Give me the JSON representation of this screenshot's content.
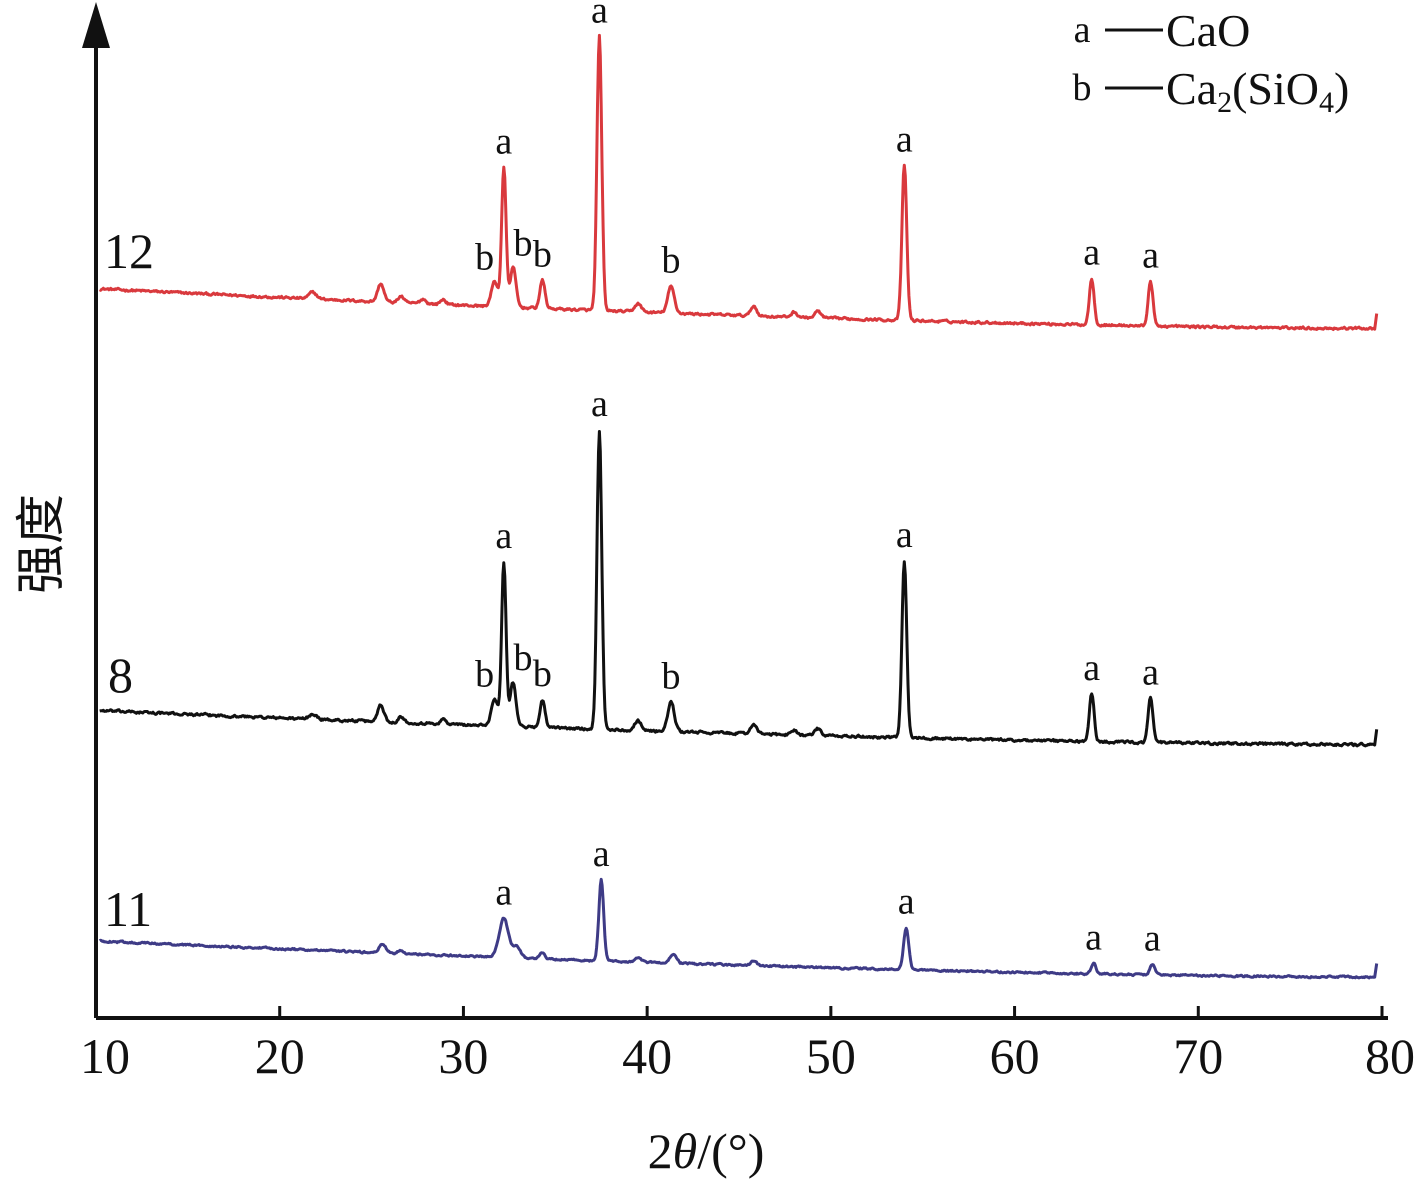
{
  "chart_data": {
    "type": "line",
    "title": "",
    "xlabel": "2θ/(°)",
    "ylabel": "强度",
    "xlim": [
      10,
      80
    ],
    "xticks": [
      10,
      20,
      30,
      40,
      50,
      60,
      70,
      80
    ],
    "grid": false,
    "y_scale": "offset-stacked, arbitrary intensity",
    "legend": {
      "placement": "top-right",
      "entries": [
        {
          "key": "a",
          "dash": "—",
          "label": "CaO",
          "label_main": "CaO",
          "label_sub": "",
          "label_close": ""
        },
        {
          "key": "b",
          "dash": "—",
          "label": "Ca2(SiO4)",
          "label_main": "Ca",
          "label_sub": "2",
          "label_mid": "(SiO",
          "label_sub2": "4",
          "label_close": ")"
        }
      ]
    },
    "series": [
      {
        "label": "12",
        "color": "#d9393d",
        "baseline_start": 0.14,
        "baseline_end": 0.02,
        "noise": 0.006,
        "peaks": [
          {
            "x": 21.8,
            "h": 0.02,
            "w": 0.2
          },
          {
            "x": 25.5,
            "h": 0.055,
            "w": 0.17
          },
          {
            "x": 26.6,
            "h": 0.02,
            "w": 0.15
          },
          {
            "x": 27.8,
            "h": 0.014,
            "w": 0.15
          },
          {
            "x": 28.9,
            "h": 0.015,
            "w": 0.15
          },
          {
            "x": 31.7,
            "h": 0.075,
            "w": 0.18,
            "label": "b"
          },
          {
            "x": 32.2,
            "h": 0.42,
            "w": 0.12,
            "label": "a"
          },
          {
            "x": 32.7,
            "h": 0.12,
            "w": 0.16,
            "label": "b"
          },
          {
            "x": 34.3,
            "h": 0.085,
            "w": 0.14,
            "label": "b"
          },
          {
            "x": 37.4,
            "h": 0.83,
            "w": 0.13,
            "label": "a"
          },
          {
            "x": 39.5,
            "h": 0.025,
            "w": 0.18
          },
          {
            "x": 41.3,
            "h": 0.08,
            "w": 0.18,
            "label": "b"
          },
          {
            "x": 45.8,
            "h": 0.03,
            "w": 0.16
          },
          {
            "x": 48.0,
            "h": 0.015,
            "w": 0.16
          },
          {
            "x": 49.3,
            "h": 0.02,
            "w": 0.16
          },
          {
            "x": 54.0,
            "h": 0.47,
            "w": 0.13,
            "label": "a"
          },
          {
            "x": 64.2,
            "h": 0.14,
            "w": 0.13,
            "label": "a"
          },
          {
            "x": 67.4,
            "h": 0.135,
            "w": 0.13,
            "label": "a"
          }
        ]
      },
      {
        "label": "8",
        "color": "#111111",
        "baseline_start": 0.11,
        "baseline_end": 0.01,
        "noise": 0.006,
        "peaks": [
          {
            "x": 21.8,
            "h": 0.015,
            "w": 0.2
          },
          {
            "x": 25.5,
            "h": 0.05,
            "w": 0.17
          },
          {
            "x": 26.6,
            "h": 0.018,
            "w": 0.15
          },
          {
            "x": 28.9,
            "h": 0.014,
            "w": 0.15
          },
          {
            "x": 31.7,
            "h": 0.08,
            "w": 0.18,
            "label": "b"
          },
          {
            "x": 32.2,
            "h": 0.48,
            "w": 0.12,
            "label": "a"
          },
          {
            "x": 32.7,
            "h": 0.13,
            "w": 0.16,
            "label": "b"
          },
          {
            "x": 34.3,
            "h": 0.08,
            "w": 0.14,
            "label": "b"
          },
          {
            "x": 37.4,
            "h": 0.88,
            "w": 0.13,
            "label": "a"
          },
          {
            "x": 39.5,
            "h": 0.03,
            "w": 0.18
          },
          {
            "x": 41.3,
            "h": 0.085,
            "w": 0.18,
            "label": "b"
          },
          {
            "x": 45.8,
            "h": 0.03,
            "w": 0.16
          },
          {
            "x": 48.0,
            "h": 0.015,
            "w": 0.16
          },
          {
            "x": 49.3,
            "h": 0.02,
            "w": 0.16
          },
          {
            "x": 54.0,
            "h": 0.52,
            "w": 0.13,
            "label": "a"
          },
          {
            "x": 64.2,
            "h": 0.14,
            "w": 0.13,
            "label": "a"
          },
          {
            "x": 67.4,
            "h": 0.13,
            "w": 0.13,
            "label": "a"
          }
        ]
      },
      {
        "label": "11",
        "color": "#3e3b86",
        "baseline_start": 0.12,
        "baseline_end": 0.0,
        "noise": 0.005,
        "peaks": [
          {
            "x": 25.6,
            "h": 0.03,
            "w": 0.17
          },
          {
            "x": 26.6,
            "h": 0.012,
            "w": 0.15
          },
          {
            "x": 32.2,
            "h": 0.13,
            "w": 0.25,
            "label": "a"
          },
          {
            "x": 32.9,
            "h": 0.04,
            "w": 0.2
          },
          {
            "x": 34.3,
            "h": 0.02,
            "w": 0.14
          },
          {
            "x": 37.5,
            "h": 0.27,
            "w": 0.13,
            "label": "a"
          },
          {
            "x": 39.5,
            "h": 0.012,
            "w": 0.18
          },
          {
            "x": 41.4,
            "h": 0.03,
            "w": 0.18
          },
          {
            "x": 45.8,
            "h": 0.015,
            "w": 0.16
          },
          {
            "x": 54.1,
            "h": 0.14,
            "w": 0.14,
            "label": "a"
          },
          {
            "x": 64.3,
            "h": 0.035,
            "w": 0.13,
            "label": "a"
          },
          {
            "x": 67.5,
            "h": 0.035,
            "w": 0.13,
            "label": "a"
          }
        ]
      }
    ]
  }
}
